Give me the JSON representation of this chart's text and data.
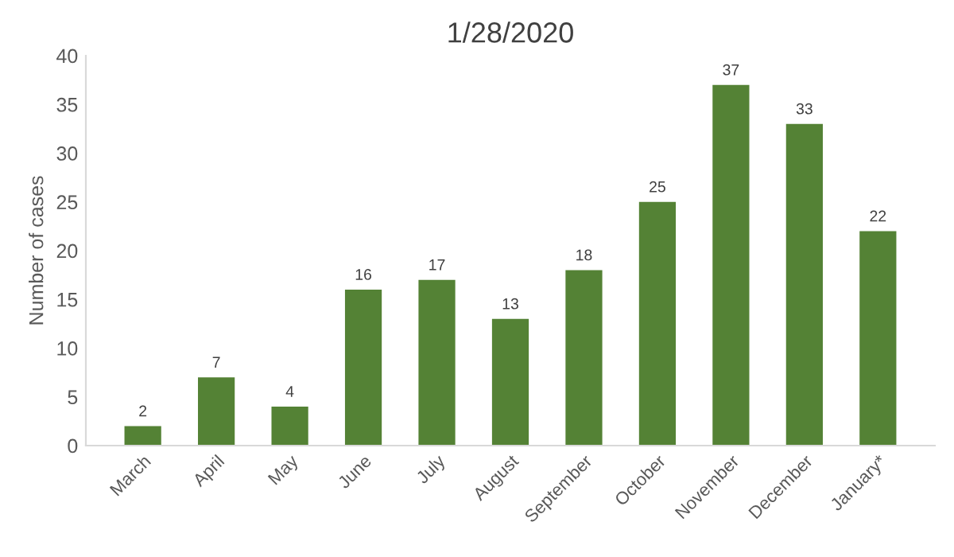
{
  "chart_data": {
    "type": "bar",
    "title": "1/28/2020",
    "ylabel": "Number of cases",
    "categories": [
      "March",
      "April",
      "May",
      "June",
      "July",
      "August",
      "September",
      "October",
      "November",
      "December",
      "January*"
    ],
    "values": [
      2,
      7,
      4,
      16,
      17,
      13,
      18,
      25,
      37,
      33,
      22
    ],
    "color": "#548235",
    "ylim": [
      0,
      40
    ],
    "yticks": [
      0,
      5,
      10,
      15,
      20,
      25,
      30,
      35,
      40
    ],
    "data_labels": true,
    "grid": false
  }
}
